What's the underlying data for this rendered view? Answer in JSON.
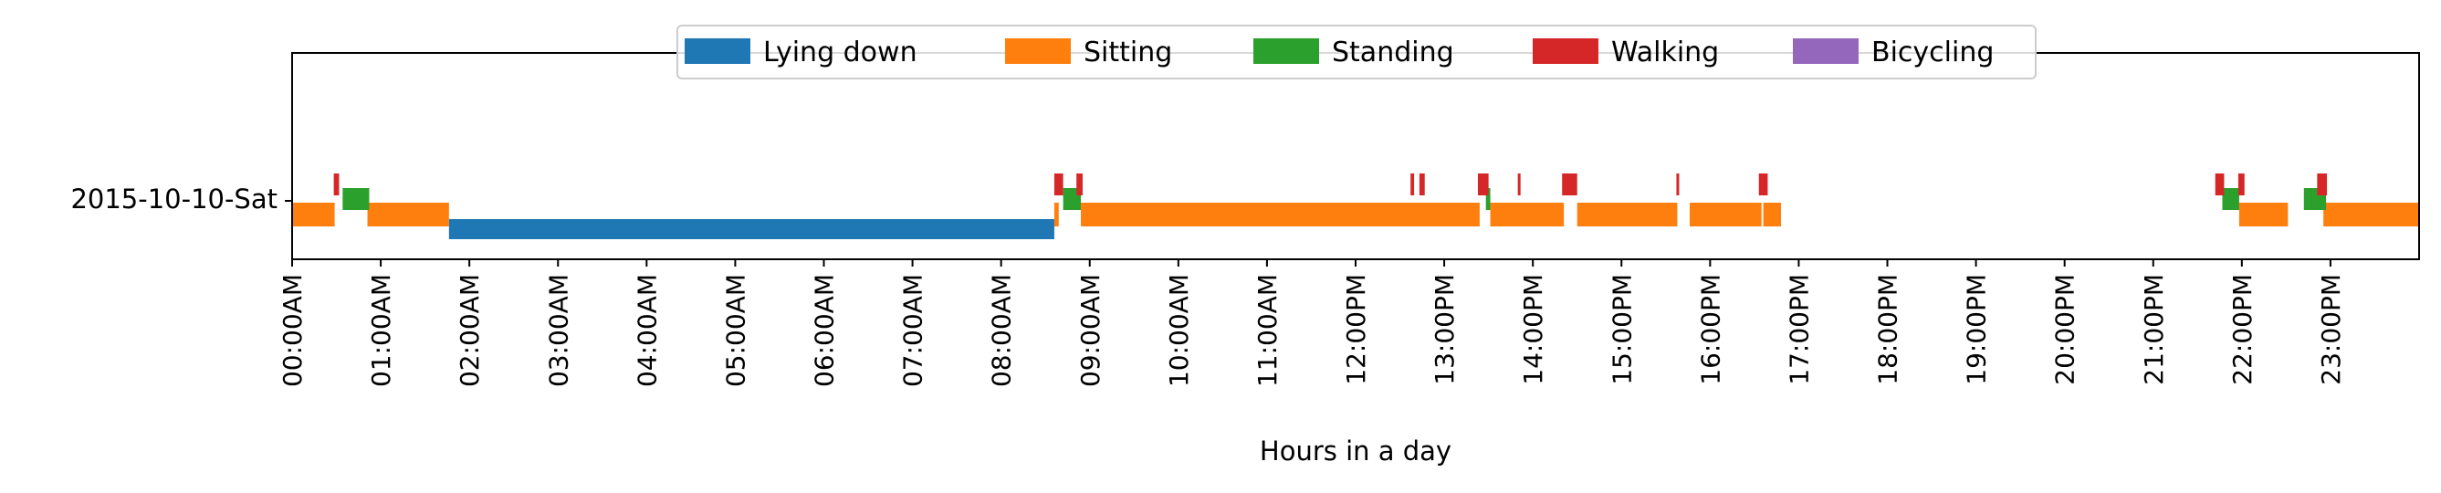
{
  "chart_data": {
    "type": "timeline",
    "xlabel": "Hours in a day",
    "xlim": [
      0,
      24
    ],
    "x_ticks": [
      "00:00AM",
      "01:00AM",
      "02:00AM",
      "03:00AM",
      "04:00AM",
      "05:00AM",
      "06:00AM",
      "07:00AM",
      "08:00AM",
      "09:00AM",
      "10:00AM",
      "11:00AM",
      "12:00PM",
      "13:00PM",
      "14:00PM",
      "15:00PM",
      "16:00PM",
      "17:00PM",
      "18:00PM",
      "19:00PM",
      "20:00PM",
      "21:00PM",
      "22:00PM",
      "23:00PM"
    ],
    "y_categories": [
      "2015-10-10-Sat"
    ],
    "legend_position": "top-center",
    "series": [
      {
        "name": "Lying down",
        "color": "#1f77b4",
        "segments": [
          [
            1.77,
            8.6
          ]
        ]
      },
      {
        "name": "Sitting",
        "color": "#ff7f0e",
        "segments": [
          [
            0.0,
            0.48
          ],
          [
            0.85,
            1.77
          ],
          [
            8.6,
            8.65
          ],
          [
            8.9,
            13.4
          ],
          [
            13.52,
            14.35
          ],
          [
            14.5,
            15.63
          ],
          [
            15.77,
            16.58
          ],
          [
            16.6,
            16.8
          ],
          [
            21.97,
            22.52
          ],
          [
            22.92,
            24.0
          ]
        ]
      },
      {
        "name": "Standing",
        "color": "#2ca02c",
        "segments": [
          [
            0.57,
            0.87
          ],
          [
            8.7,
            8.9
          ],
          [
            13.47,
            13.52
          ],
          [
            21.78,
            21.97
          ],
          [
            22.7,
            22.95
          ]
        ]
      },
      {
        "name": "Walking",
        "color": "#d62728",
        "segments": [
          [
            0.47,
            0.53
          ],
          [
            8.6,
            8.7
          ],
          [
            8.85,
            8.92
          ],
          [
            12.62,
            12.66
          ],
          [
            12.72,
            12.78
          ],
          [
            13.38,
            13.5
          ],
          [
            13.83,
            13.86
          ],
          [
            14.33,
            14.5
          ],
          [
            15.62,
            15.65
          ],
          [
            16.55,
            16.65
          ],
          [
            21.7,
            21.8
          ],
          [
            21.96,
            22.03
          ],
          [
            22.85,
            22.96
          ]
        ]
      },
      {
        "name": "Bicycling",
        "color": "#9467bd",
        "segments": []
      }
    ]
  }
}
